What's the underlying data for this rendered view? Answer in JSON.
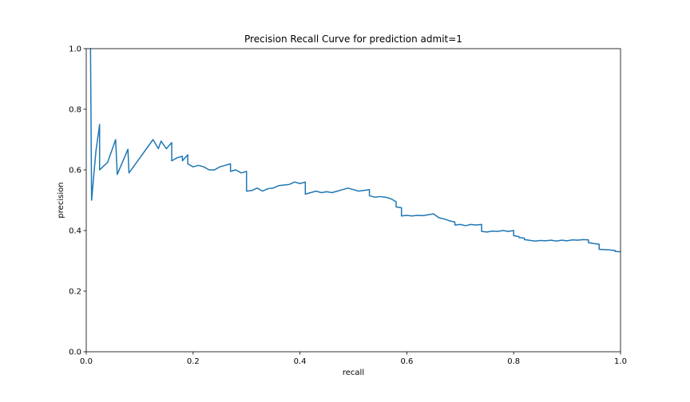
{
  "chart_data": {
    "type": "line",
    "title": "Precision Recall Curve for prediction admit=1",
    "xlabel": "recall",
    "ylabel": "precision",
    "xlim": [
      0,
      1
    ],
    "ylim": [
      0,
      1
    ],
    "xticks": [
      "0.0",
      "0.2",
      "0.4",
      "0.6",
      "0.8",
      "1.0"
    ],
    "yticks": [
      "0.0",
      "0.2",
      "0.4",
      "0.6",
      "0.8",
      "1.0"
    ],
    "grid": false,
    "series": [
      {
        "color": "#1f77b4",
        "points": [
          [
            1.0,
            0.33
          ],
          [
            0.99,
            0.331
          ],
          [
            0.99,
            0.334
          ],
          [
            0.98,
            0.336
          ],
          [
            0.97,
            0.337
          ],
          [
            0.96,
            0.338
          ],
          [
            0.96,
            0.355
          ],
          [
            0.95,
            0.357
          ],
          [
            0.94,
            0.36
          ],
          [
            0.94,
            0.369
          ],
          [
            0.93,
            0.37
          ],
          [
            0.92,
            0.368
          ],
          [
            0.91,
            0.369
          ],
          [
            0.9,
            0.366
          ],
          [
            0.89,
            0.368
          ],
          [
            0.88,
            0.365
          ],
          [
            0.87,
            0.368
          ],
          [
            0.86,
            0.366
          ],
          [
            0.85,
            0.367
          ],
          [
            0.84,
            0.365
          ],
          [
            0.82,
            0.37
          ],
          [
            0.82,
            0.375
          ],
          [
            0.81,
            0.377
          ],
          [
            0.81,
            0.38
          ],
          [
            0.8,
            0.383
          ],
          [
            0.8,
            0.4
          ],
          [
            0.79,
            0.397
          ],
          [
            0.78,
            0.4
          ],
          [
            0.77,
            0.397
          ],
          [
            0.76,
            0.398
          ],
          [
            0.75,
            0.395
          ],
          [
            0.74,
            0.397
          ],
          [
            0.74,
            0.42
          ],
          [
            0.73,
            0.418
          ],
          [
            0.72,
            0.42
          ],
          [
            0.71,
            0.416
          ],
          [
            0.7,
            0.42
          ],
          [
            0.69,
            0.418
          ],
          [
            0.69,
            0.428
          ],
          [
            0.68,
            0.432
          ],
          [
            0.67,
            0.438
          ],
          [
            0.66,
            0.442
          ],
          [
            0.65,
            0.455
          ],
          [
            0.64,
            0.452
          ],
          [
            0.63,
            0.449
          ],
          [
            0.62,
            0.45
          ],
          [
            0.61,
            0.448
          ],
          [
            0.6,
            0.45
          ],
          [
            0.59,
            0.448
          ],
          [
            0.59,
            0.475
          ],
          [
            0.58,
            0.478
          ],
          [
            0.58,
            0.495
          ],
          [
            0.57,
            0.505
          ],
          [
            0.56,
            0.51
          ],
          [
            0.55,
            0.512
          ],
          [
            0.54,
            0.51
          ],
          [
            0.53,
            0.515
          ],
          [
            0.53,
            0.535
          ],
          [
            0.51,
            0.53
          ],
          [
            0.5,
            0.535
          ],
          [
            0.49,
            0.54
          ],
          [
            0.48,
            0.535
          ],
          [
            0.47,
            0.53
          ],
          [
            0.46,
            0.525
          ],
          [
            0.45,
            0.528
          ],
          [
            0.44,
            0.525
          ],
          [
            0.43,
            0.53
          ],
          [
            0.42,
            0.525
          ],
          [
            0.41,
            0.52
          ],
          [
            0.41,
            0.56
          ],
          [
            0.4,
            0.555
          ],
          [
            0.39,
            0.56
          ],
          [
            0.38,
            0.552
          ],
          [
            0.37,
            0.55
          ],
          [
            0.36,
            0.548
          ],
          [
            0.35,
            0.54
          ],
          [
            0.34,
            0.538
          ],
          [
            0.33,
            0.53
          ],
          [
            0.32,
            0.54
          ],
          [
            0.31,
            0.532
          ],
          [
            0.3,
            0.53
          ],
          [
            0.3,
            0.595
          ],
          [
            0.29,
            0.59
          ],
          [
            0.28,
            0.6
          ],
          [
            0.27,
            0.595
          ],
          [
            0.27,
            0.62
          ],
          [
            0.26,
            0.615
          ],
          [
            0.25,
            0.61
          ],
          [
            0.24,
            0.6
          ],
          [
            0.23,
            0.6
          ],
          [
            0.22,
            0.61
          ],
          [
            0.21,
            0.615
          ],
          [
            0.2,
            0.61
          ],
          [
            0.19,
            0.62
          ],
          [
            0.19,
            0.65
          ],
          [
            0.18,
            0.63
          ],
          [
            0.18,
            0.645
          ],
          [
            0.17,
            0.64
          ],
          [
            0.16,
            0.63
          ],
          [
            0.16,
            0.69
          ],
          [
            0.15,
            0.67
          ],
          [
            0.14,
            0.695
          ],
          [
            0.135,
            0.67
          ],
          [
            0.125,
            0.7
          ],
          [
            0.08,
            0.59
          ],
          [
            0.078,
            0.668
          ],
          [
            0.058,
            0.585
          ],
          [
            0.055,
            0.7
          ],
          [
            0.04,
            0.625
          ],
          [
            0.025,
            0.6
          ],
          [
            0.025,
            0.75
          ],
          [
            0.018,
            0.66
          ],
          [
            0.01,
            0.5
          ],
          [
            0.008,
            1.0
          ],
          [
            0.007,
            1.0
          ]
        ]
      }
    ]
  }
}
